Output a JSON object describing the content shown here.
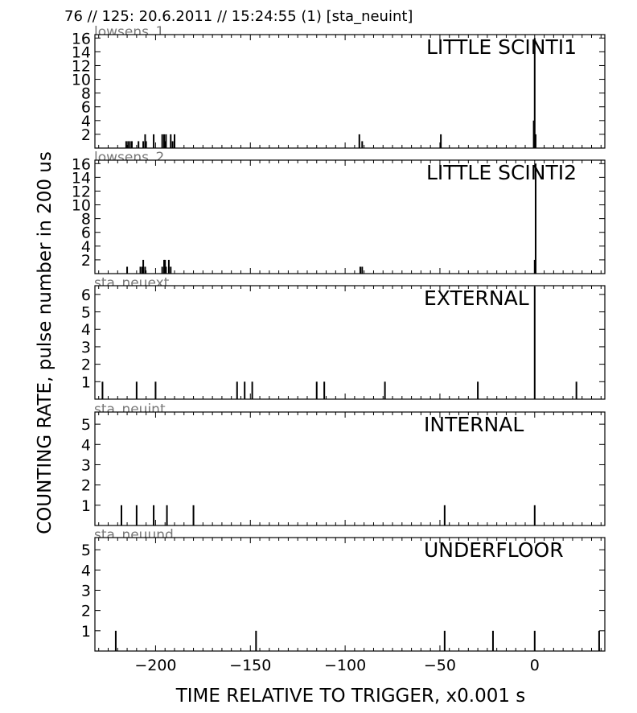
{
  "header": {
    "title": "76 // 125:   20.6.2011 // 15:24:55 (1)  [sta_neuint]"
  },
  "axes": {
    "ylabel": "COUNTING RATE,   pulse number in 200 us",
    "xlabel": "TIME RELATIVE TO TRIGGER,   x0.001 s"
  },
  "chart_data": [
    {
      "type": "bar",
      "id": "lowsens_1",
      "panel_label": "lowsens_1",
      "title": "LITTLE SCINTI1",
      "ylim": [
        0,
        16.5
      ],
      "yticks": [
        2,
        4,
        6,
        8,
        10,
        12,
        14,
        16
      ],
      "xlim": [
        -232,
        37
      ],
      "xticks": [
        -200,
        -150,
        -100,
        -50,
        0
      ],
      "x": [
        -215.5,
        -214.5,
        -213.5,
        -212.5,
        -209,
        -206.5,
        -205.5,
        -205,
        -201,
        -196.5,
        -195.5,
        -195,
        -194.5,
        -192,
        -191,
        -190,
        -92.5,
        -91,
        -49.5,
        -0.5,
        0,
        0.5
      ],
      "values": [
        1,
        1,
        1,
        1,
        1,
        1,
        2,
        1,
        2,
        2,
        2,
        1,
        2,
        2,
        1,
        2,
        2,
        1,
        2,
        4,
        16,
        2
      ]
    },
    {
      "type": "bar",
      "id": "lowsens_2",
      "panel_label": "lowsens_2",
      "title": "LITTLE SCINTI2",
      "ylim": [
        0,
        16.5
      ],
      "yticks": [
        2,
        4,
        6,
        8,
        10,
        12,
        14,
        16
      ],
      "xlim": [
        -232,
        37
      ],
      "xticks": [
        -200,
        -150,
        -100,
        -50,
        0
      ],
      "x": [
        -215,
        -208,
        -207,
        -206.5,
        -205.5,
        -196.5,
        -195.5,
        -195,
        -194.5,
        -193,
        -192,
        -92,
        -91,
        0,
        0.5
      ],
      "values": [
        1,
        1,
        1,
        2,
        1,
        1,
        2,
        2,
        1,
        2,
        1,
        1,
        1,
        2,
        16
      ]
    },
    {
      "type": "bar",
      "id": "sta_neuext",
      "panel_label": "sta_neuext",
      "title": "EXTERNAL",
      "ylim": [
        0,
        6.5
      ],
      "yticks": [
        1,
        2,
        3,
        4,
        5,
        6
      ],
      "xlim": [
        -232,
        37
      ],
      "xticks": [
        -200,
        -150,
        -100,
        -50,
        0
      ],
      "x": [
        -228,
        -210,
        -200,
        -157,
        -153,
        -149,
        -115,
        -111,
        -79,
        -30,
        0,
        22
      ],
      "values": [
        1,
        1,
        1,
        1,
        1,
        1,
        1,
        1,
        1,
        1,
        6.5,
        1
      ]
    },
    {
      "type": "bar",
      "id": "sta_neuint",
      "panel_label": "sta_neuint",
      "title": "INTERNAL",
      "ylim": [
        0,
        5.6
      ],
      "yticks": [
        1,
        2,
        3,
        4,
        5
      ],
      "xlim": [
        -232,
        37
      ],
      "xticks": [
        -200,
        -150,
        -100,
        -50,
        0
      ],
      "x": [
        -218,
        -210,
        -201,
        -194,
        -180,
        -47.5,
        0
      ],
      "values": [
        1,
        1,
        1,
        1,
        1,
        1,
        1
      ]
    },
    {
      "type": "bar",
      "id": "sta_neuund",
      "panel_label": "sta_neuund",
      "title": "UNDERFLOOR",
      "ylim": [
        0,
        5.6
      ],
      "yticks": [
        1,
        2,
        3,
        4,
        5
      ],
      "xlim": [
        -232,
        37
      ],
      "xticks": [
        -200,
        -150,
        -100,
        -50,
        0
      ],
      "xticklabels": [
        "−200",
        "−150",
        "−100",
        "−50",
        "0"
      ],
      "x": [
        -221,
        -147,
        -47.5,
        -22,
        0,
        34
      ],
      "values": [
        1,
        1,
        1,
        1,
        1,
        1
      ]
    }
  ]
}
